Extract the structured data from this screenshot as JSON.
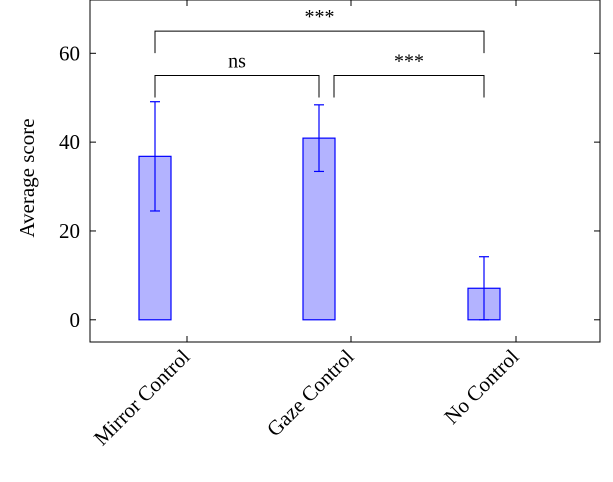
{
  "chart_data": {
    "type": "bar",
    "title": "",
    "xlabel": "",
    "ylabel": "Average score",
    "ylim": [
      -5,
      72
    ],
    "yticks": [
      0,
      20,
      40,
      60
    ],
    "categories": [
      "Mirror Control",
      "Gaze Control",
      "No Control"
    ],
    "series": [
      {
        "values": [
          36.8,
          40.9,
          7.1
        ],
        "error_low": [
          24.5,
          33.4,
          0
        ],
        "error_high": [
          49.1,
          48.4,
          14.2
        ]
      }
    ],
    "annotations": [
      {
        "from": "Mirror Control",
        "to": "Gaze Control",
        "label": "ns",
        "y": 55
      },
      {
        "from": "Gaze Control",
        "to": "No Control",
        "label": "***",
        "y": 55
      },
      {
        "from": "Mirror Control",
        "to": "No Control",
        "label": "***",
        "y": 65
      }
    ],
    "grid": false,
    "legend": "none",
    "colors": {
      "bar_fill": "#b3b3ff",
      "bar_stroke": "#0000ff",
      "text": "#000000"
    }
  }
}
